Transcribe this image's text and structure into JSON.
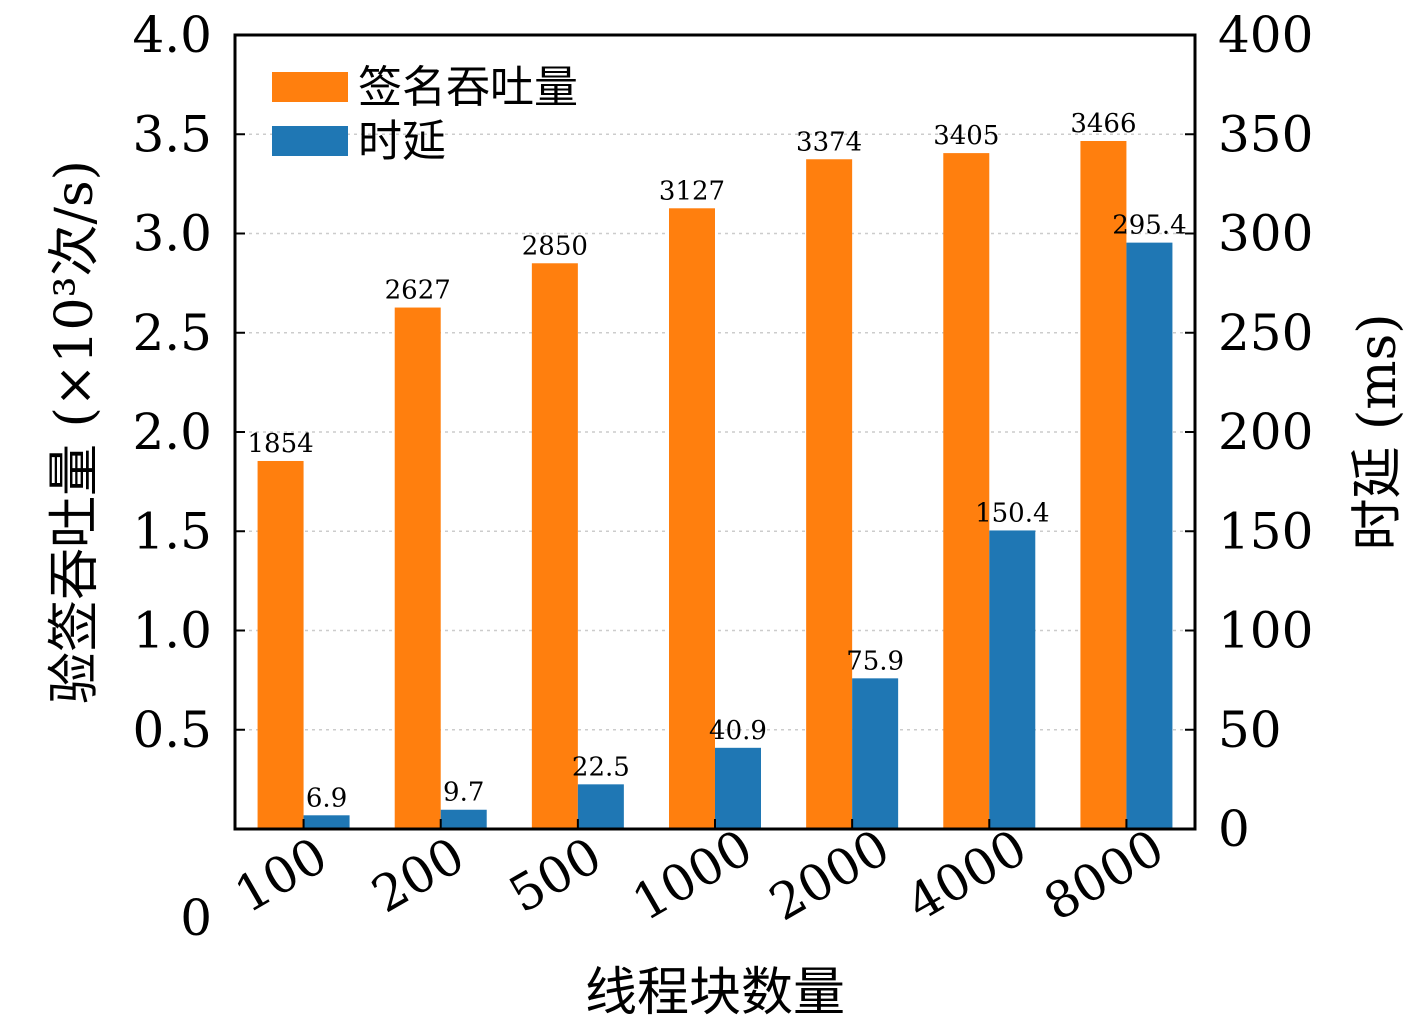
{
  "chart_data": {
    "type": "bar",
    "xlabel": "线程块数量",
    "ylabel_left": "验签吞吐量 (×10³次/s)",
    "ylabel_right": "时延 (ms)",
    "categories": [
      "100",
      "200",
      "500",
      "1000",
      "2000",
      "4000",
      "8000"
    ],
    "ylim_left": [
      0,
      4.0
    ],
    "ylim_right": [
      0,
      400
    ],
    "yticks_left": [
      "0",
      "0.5",
      "1.0",
      "1.5",
      "2.0",
      "2.5",
      "3.0",
      "3.5",
      "4.0"
    ],
    "yticks_right": [
      "0",
      "50",
      "100",
      "150",
      "200",
      "250",
      "300",
      "350",
      "400"
    ],
    "grid": true,
    "legend_position": "top-left",
    "series": [
      {
        "name": "签名吞吐量",
        "axis": "left",
        "color": "#ff7f0e",
        "values": [
          1854,
          2627,
          2850,
          3127,
          3374,
          3405,
          3466
        ],
        "data_labels": [
          "1854",
          "2627",
          "2850",
          "3127",
          "3374",
          "3405",
          "3466"
        ]
      },
      {
        "name": "时延",
        "axis": "right",
        "color": "#1f77b4",
        "values": [
          6.9,
          9.7,
          22.5,
          40.9,
          75.9,
          150.4,
          295.4
        ],
        "data_labels": [
          "6.9",
          "9.7",
          "22.5",
          "40.9",
          "75.9",
          "150.4",
          "295.4"
        ]
      }
    ]
  }
}
